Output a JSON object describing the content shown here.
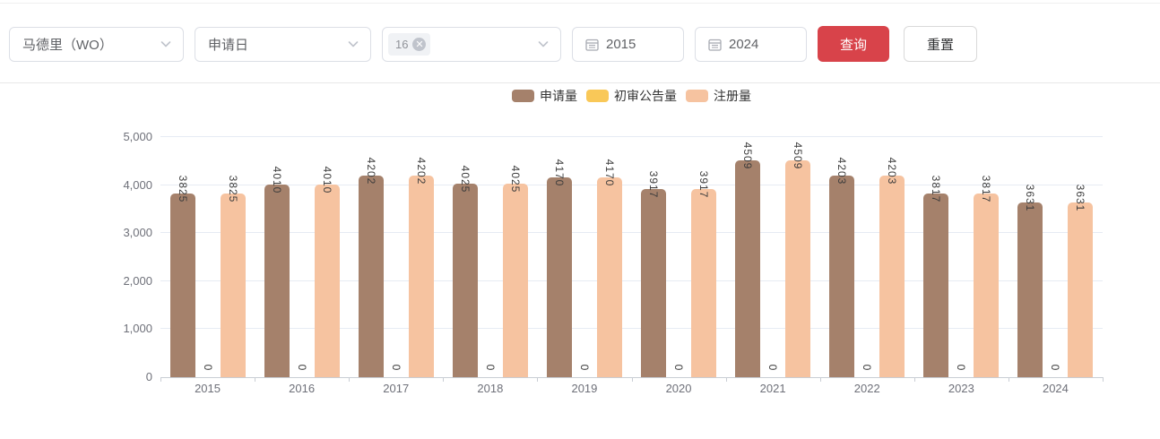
{
  "filter_bar": {
    "region_select": {
      "value": "马德里（WO）"
    },
    "date_type_select": {
      "value": "申请日"
    },
    "class_select": {
      "tags": [
        {
          "label": "16"
        }
      ],
      "remove_icon": "✕"
    },
    "start_year": {
      "value": "2015"
    },
    "end_year": {
      "value": "2024"
    },
    "query_label": "查询",
    "reset_label": "重置"
  },
  "colors": {
    "accent_red": "#d8434a",
    "series_apply": "#a5816b",
    "series_announce": "#f9c858",
    "series_register": "#f6c3a0",
    "grid": "#e6ebf3",
    "axis": "#c9cdd4"
  },
  "chart_data": {
    "type": "bar",
    "categories": [
      "2015",
      "2016",
      "2017",
      "2018",
      "2019",
      "2020",
      "2021",
      "2022",
      "2023",
      "2024"
    ],
    "series": [
      {
        "name": "申请量",
        "color": "#a5816b",
        "values": [
          3825,
          4010,
          4202,
          4025,
          4170,
          3917,
          4509,
          4203,
          3817,
          3631
        ]
      },
      {
        "name": "初审公告量",
        "color": "#f9c858",
        "values": [
          0,
          0,
          0,
          0,
          0,
          0,
          0,
          0,
          0,
          0
        ]
      },
      {
        "name": "注册量",
        "color": "#f6c3a0",
        "values": [
          3825,
          4010,
          4202,
          4025,
          4170,
          3917,
          4509,
          4203,
          3817,
          3631
        ]
      }
    ],
    "title": "",
    "xlabel": "",
    "ylabel": "",
    "ylim": [
      0,
      5000
    ],
    "yticks": [
      0,
      1000,
      2000,
      3000,
      4000,
      5000
    ],
    "ytick_labels": [
      "0",
      "1,000",
      "2,000",
      "3,000",
      "4,000",
      "5,000"
    ],
    "grid": true,
    "legend_position": "top",
    "bar_value_labels_rotated": true
  }
}
